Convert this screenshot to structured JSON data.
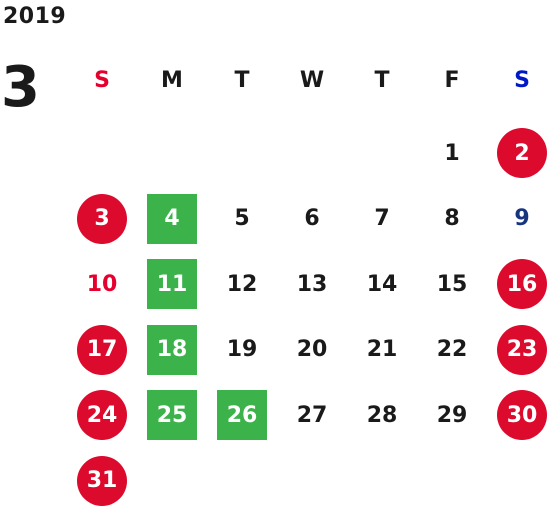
{
  "year": "2019",
  "month": "3",
  "weekdays": [
    {
      "label": "S",
      "color": "#e5002d"
    },
    {
      "label": "M",
      "color": "#1a1a1a"
    },
    {
      "label": "T",
      "color": "#1a1a1a"
    },
    {
      "label": "W",
      "color": "#1a1a1a"
    },
    {
      "label": "T",
      "color": "#1a1a1a"
    },
    {
      "label": "F",
      "color": "#1a1a1a"
    },
    {
      "label": "S",
      "color": "#0019c8"
    }
  ],
  "colors": {
    "circle": "#dc0a2d",
    "green": "#3cb24b",
    "sunday_text": "#e5002d",
    "saturday_text": "#17357f",
    "default_text": "#1a1a1a"
  },
  "days": [
    {
      "day": "1",
      "style": "plain"
    },
    {
      "day": "2",
      "style": "circle"
    },
    {
      "day": "3",
      "style": "circle"
    },
    {
      "day": "4",
      "style": "green"
    },
    {
      "day": "5",
      "style": "plain"
    },
    {
      "day": "6",
      "style": "plain"
    },
    {
      "day": "7",
      "style": "plain"
    },
    {
      "day": "8",
      "style": "plain"
    },
    {
      "day": "9",
      "style": "saturday"
    },
    {
      "day": "10",
      "style": "sunday"
    },
    {
      "day": "11",
      "style": "green"
    },
    {
      "day": "12",
      "style": "plain"
    },
    {
      "day": "13",
      "style": "plain"
    },
    {
      "day": "14",
      "style": "plain"
    },
    {
      "day": "15",
      "style": "plain"
    },
    {
      "day": "16",
      "style": "circle"
    },
    {
      "day": "17",
      "style": "circle"
    },
    {
      "day": "18",
      "style": "green"
    },
    {
      "day": "19",
      "style": "plain"
    },
    {
      "day": "20",
      "style": "plain"
    },
    {
      "day": "21",
      "style": "plain"
    },
    {
      "day": "22",
      "style": "plain"
    },
    {
      "day": "23",
      "style": "circle"
    },
    {
      "day": "24",
      "style": "circle"
    },
    {
      "day": "25",
      "style": "green"
    },
    {
      "day": "26",
      "style": "green"
    },
    {
      "day": "27",
      "style": "plain"
    },
    {
      "day": "28",
      "style": "plain"
    },
    {
      "day": "29",
      "style": "plain"
    },
    {
      "day": "30",
      "style": "circle"
    },
    {
      "day": "31",
      "style": "circle"
    }
  ]
}
